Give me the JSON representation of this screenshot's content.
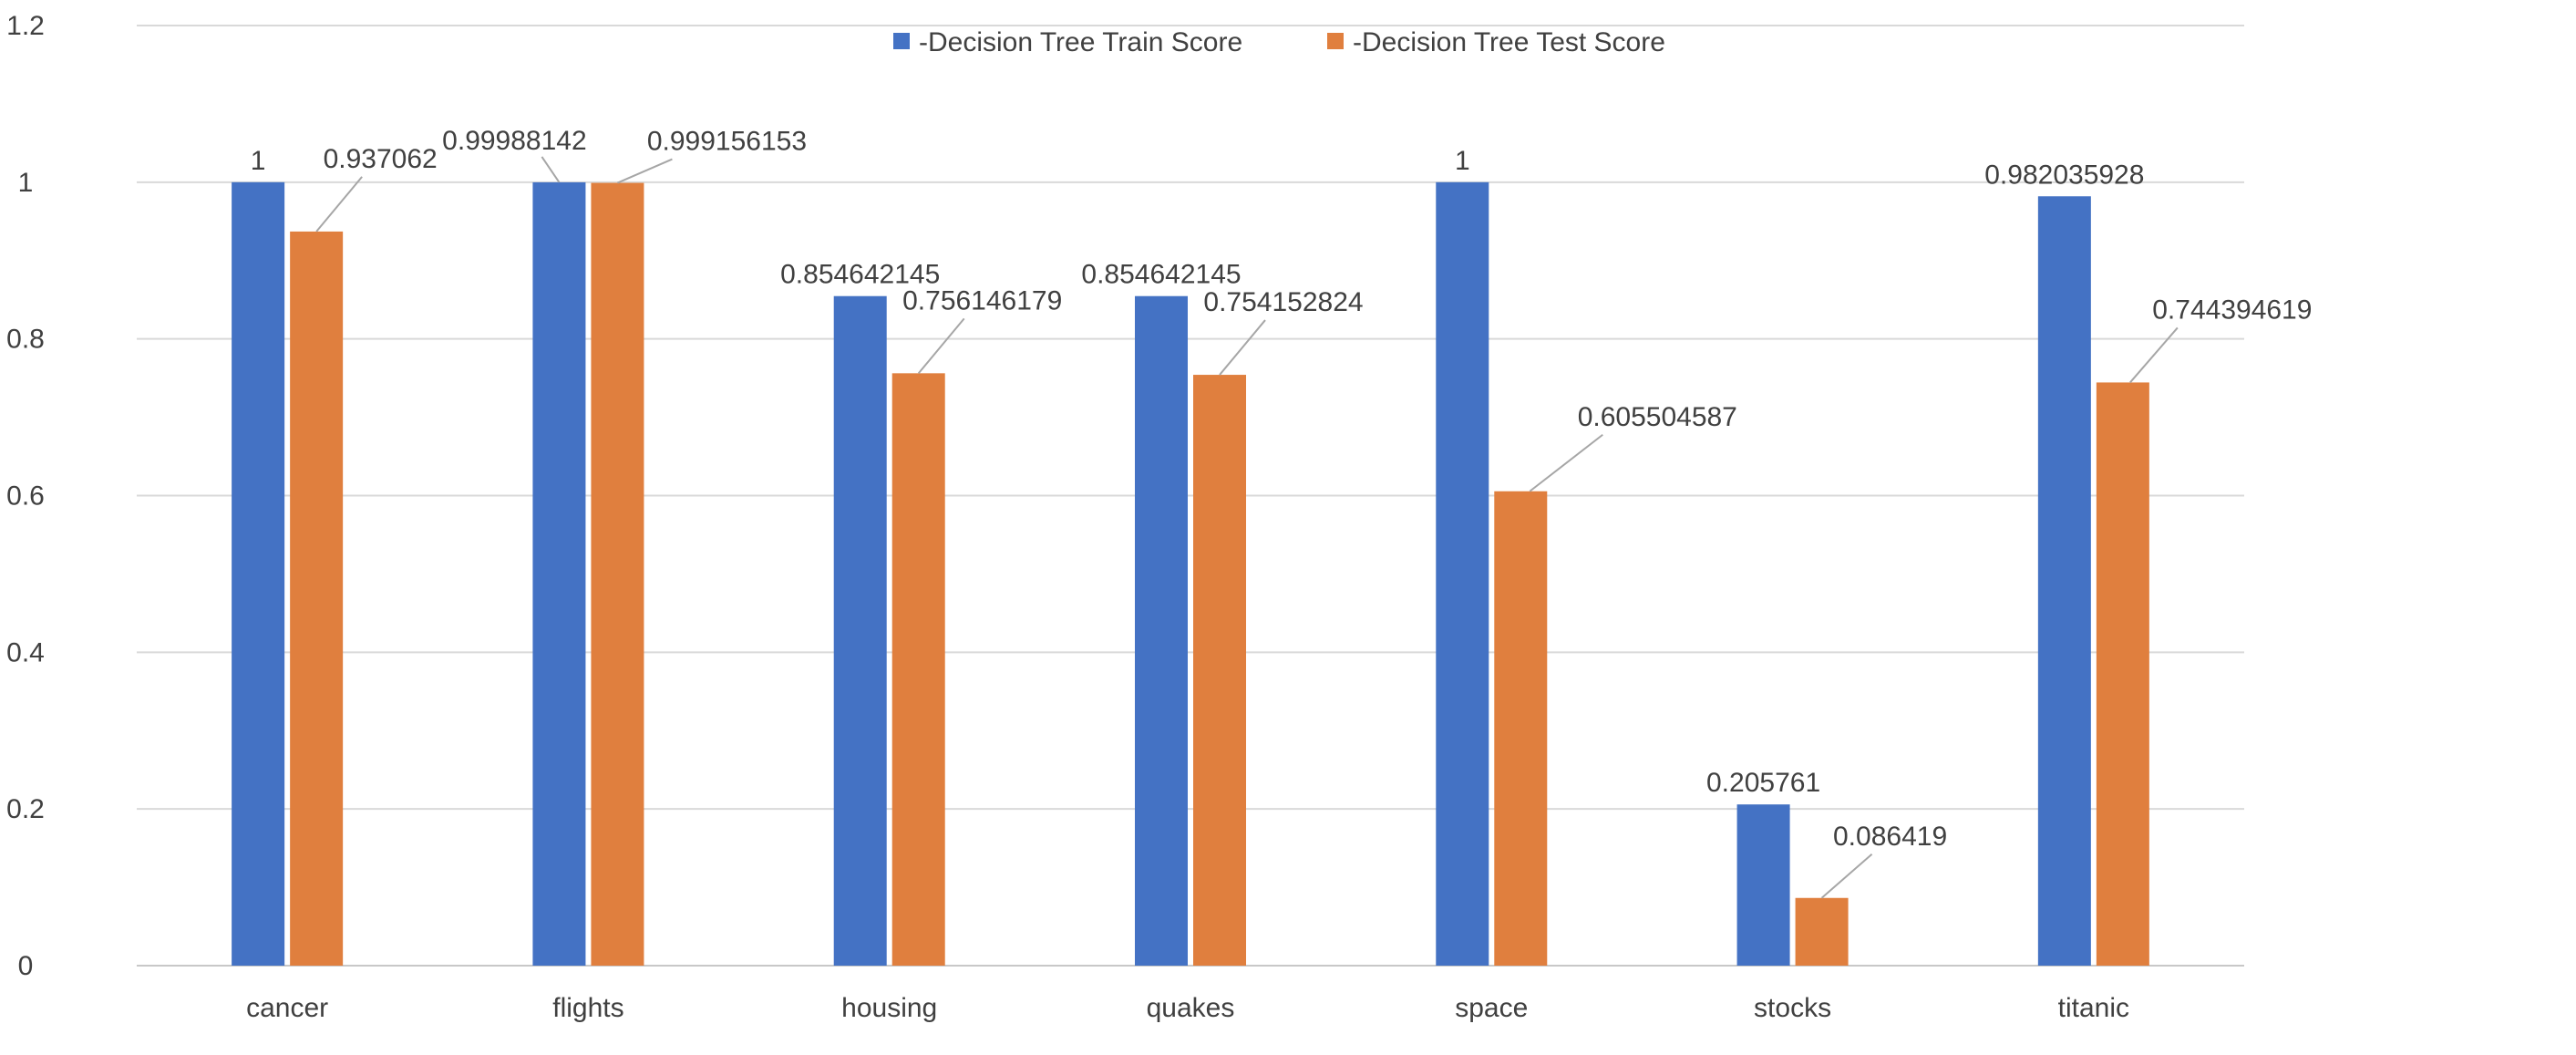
{
  "chart_data": {
    "type": "bar",
    "categories": [
      "cancer",
      "flights",
      "housing",
      "quakes",
      "space",
      "stocks",
      "titanic"
    ],
    "series": [
      {
        "name": "-Decision Tree Train Score",
        "color": "#4472C4",
        "values": [
          1,
          0.99988142,
          0.854642145,
          0.854642145,
          1,
          0.205761,
          0.982035928
        ],
        "labels": [
          "1",
          "0.99988142",
          "0.854642145",
          "0.854642145",
          "1",
          "0.205761",
          "0.982035928"
        ]
      },
      {
        "name": "-Decision Tree Test Score",
        "color": "#E07F3E",
        "values": [
          0.937062,
          0.999156153,
          0.756146179,
          0.754152824,
          0.605504587,
          0.086419,
          0.744394619
        ],
        "labels": [
          "0.937062",
          "0.999156153",
          "0.756146179",
          "0.754152824",
          "0.605504587",
          "0.086419",
          "0.744394619"
        ]
      }
    ],
    "ylim": [
      0,
      1.2
    ],
    "yticks": [
      0,
      0.2,
      0.4,
      0.6,
      0.8,
      1,
      1.2
    ],
    "ytick_labels": [
      "0",
      "0.2",
      "0.4",
      "0.6",
      "0.8",
      "1",
      "1.2"
    ],
    "grid": true,
    "legend_position": "top-center"
  }
}
